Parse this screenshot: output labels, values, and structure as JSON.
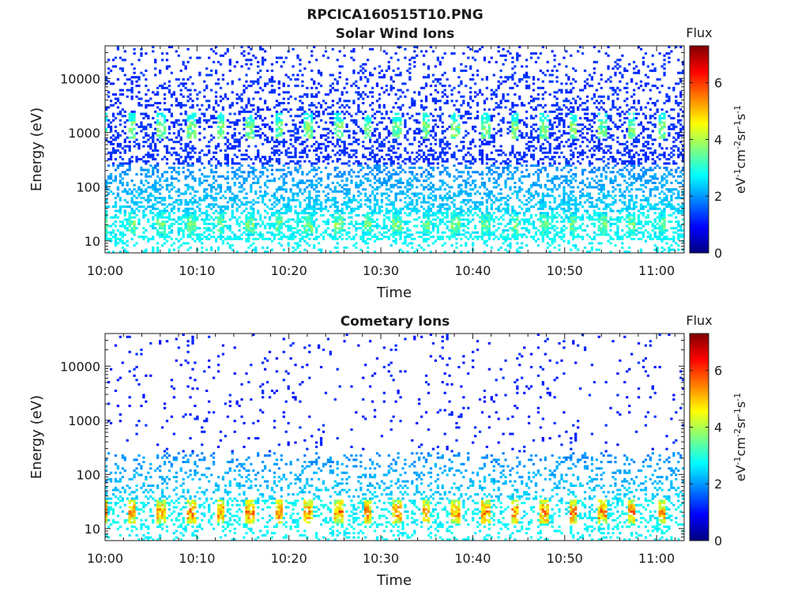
{
  "figure": {
    "title": "RPCICA160515T10.PNG"
  },
  "colormap": [
    "#00007f",
    "#0000ff",
    "#007fff",
    "#00ffff",
    "#7fff7f",
    "#ffff00",
    "#ff7f00",
    "#ff0000",
    "#7f0000"
  ],
  "chart_data": [
    {
      "type": "heatmap",
      "title": "Solar Wind Ions",
      "xlabel": "Time",
      "ylabel": "Energy (eV)",
      "xticks": [
        "10:00",
        "10:10",
        "10:20",
        "10:30",
        "10:40",
        "10:50",
        "11:00"
      ],
      "xlim": [
        "10:00",
        "11:03"
      ],
      "yscale": "log",
      "yticks": [
        10,
        100,
        1000,
        10000
      ],
      "ylim": [
        6,
        40000
      ],
      "colorbar": {
        "title": "Flux",
        "label": "eV-1cm-2sr-1s-1",
        "range": [
          0,
          7.3
        ],
        "ticks": [
          0,
          2,
          4,
          6
        ]
      },
      "features": [
        {
          "energy_eV": 20,
          "value": 4,
          "period_min": 3.2,
          "note": "periodic low-energy band"
        },
        {
          "energy_eV": 1000,
          "value": 3.5,
          "period_min": 3.2,
          "note": "periodic solar wind peak"
        },
        {
          "energy_range_eV": [
            100,
            30000
          ],
          "value": 1.2,
          "note": "scattered background counts"
        }
      ]
    },
    {
      "type": "heatmap",
      "title": "Cometary Ions",
      "xlabel": "Time",
      "ylabel": "Energy (eV)",
      "xticks": [
        "10:00",
        "10:10",
        "10:20",
        "10:30",
        "10:40",
        "10:50",
        "11:00"
      ],
      "xlim": [
        "10:00",
        "11:03"
      ],
      "yscale": "log",
      "yticks": [
        10,
        100,
        1000,
        10000
      ],
      "ylim": [
        6,
        40000
      ],
      "colorbar": {
        "title": "Flux",
        "label": "eV-1cm-2sr-1s-1",
        "range": [
          0,
          7.3
        ],
        "ticks": [
          0,
          2,
          4,
          6
        ]
      },
      "features": [
        {
          "energy_eV": 20,
          "value": 6,
          "period_min": 3.2,
          "note": "periodic intense low-energy bursts"
        },
        {
          "energy_eV": 1000,
          "value": 1.3,
          "note": "sparse mid-energy counts"
        },
        {
          "energy_range_eV": [
            50,
            30000
          ],
          "value": 1.0,
          "note": "sparse background counts"
        }
      ]
    }
  ]
}
